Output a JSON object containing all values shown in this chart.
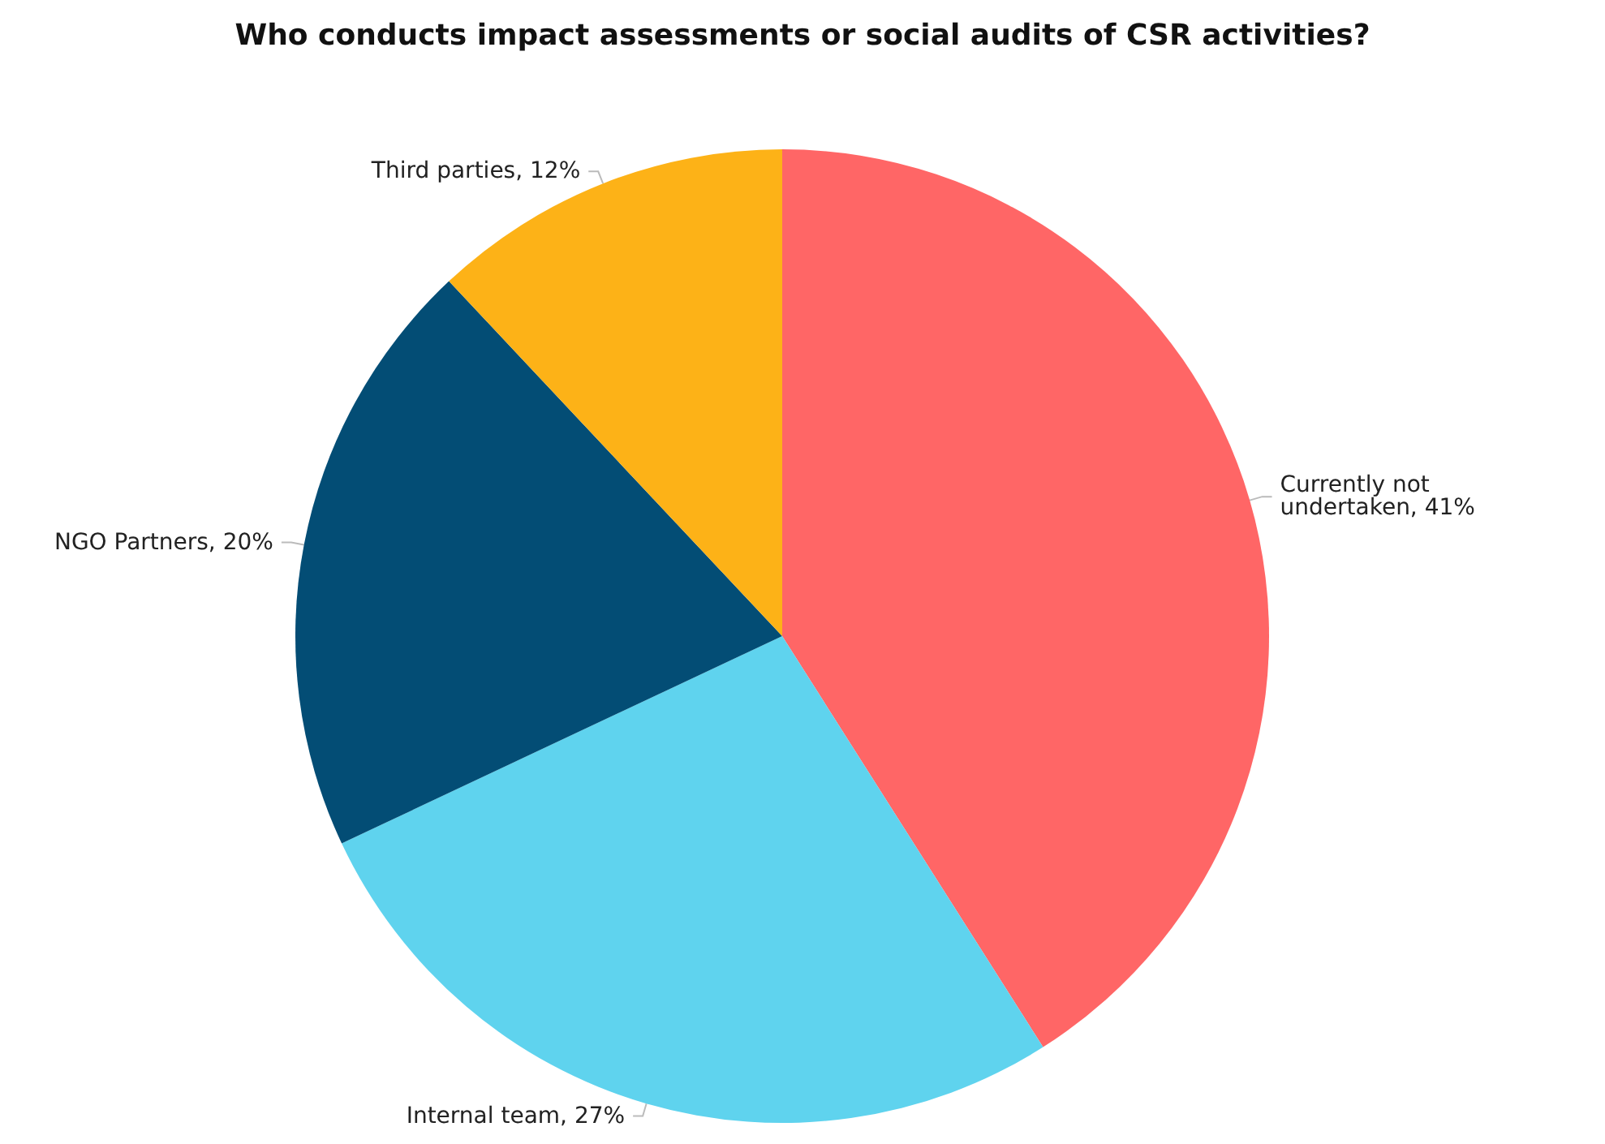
{
  "chart_data": {
    "type": "pie",
    "title": "Who conducts impact assessments or social audits of CSR activities?",
    "categories": [
      "Currently not undertaken",
      "Internal team",
      "NGO Partners",
      "Third parties"
    ],
    "values": [
      41,
      27,
      20,
      12
    ],
    "value_labels": [
      "41%",
      "27%",
      "20%",
      "12%"
    ],
    "colors": [
      "#ff6666",
      "#5fd3ee",
      "#034d75",
      "#fdb217"
    ],
    "legend": false
  }
}
